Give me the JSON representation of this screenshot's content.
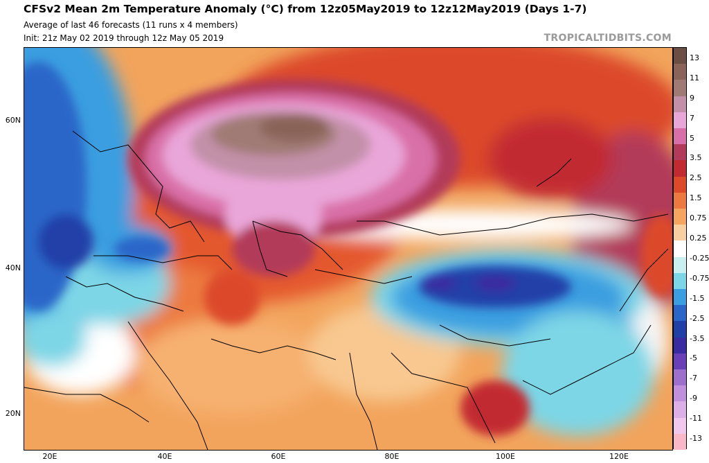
{
  "header": {
    "title": "CFSv2 Mean 2m Temperature Anomaly (°C) from 12z05May2019 to 12z12May2019 (Days 1-7)",
    "subtitle1": "Average of last 46 forecasts (11 runs x 4 members)",
    "subtitle2": "Init: 21z May 02 2019 through 12z May 05 2019",
    "brand": "TROPICALTIDBITS.COM"
  },
  "axes": {
    "lat_labels": [
      "60N",
      "40N",
      "20N"
    ],
    "lon_labels": [
      "20E",
      "40E",
      "60E",
      "80E",
      "100E",
      "120E"
    ]
  },
  "colorbar": {
    "labels": [
      "13",
      "11",
      "9",
      "7",
      "5",
      "3.5",
      "2.5",
      "1.5",
      "0.75",
      "0.25",
      "-0.25",
      "-0.75",
      "-1.5",
      "-2.5",
      "-3.5",
      "-5",
      "-7",
      "-9",
      "-11",
      "-13"
    ],
    "colors": [
      "#6b4f45",
      "#8a6458",
      "#a07a75",
      "#c290a8",
      "#e9a6d8",
      "#d96fa8",
      "#b23a5a",
      "#c22a32",
      "#dc4a2a",
      "#ec7a40",
      "#f4a660",
      "#f8cfa0",
      "#ffffff",
      "#c8f0f0",
      "#7dd6e6",
      "#3a9ee0",
      "#2a66c8",
      "#2040a8",
      "#3a2ca0",
      "#6a40b8",
      "#9c70cc",
      "#c090dc",
      "#dcb0e6",
      "#f0c8ee",
      "#f8b8c8"
    ]
  }
}
